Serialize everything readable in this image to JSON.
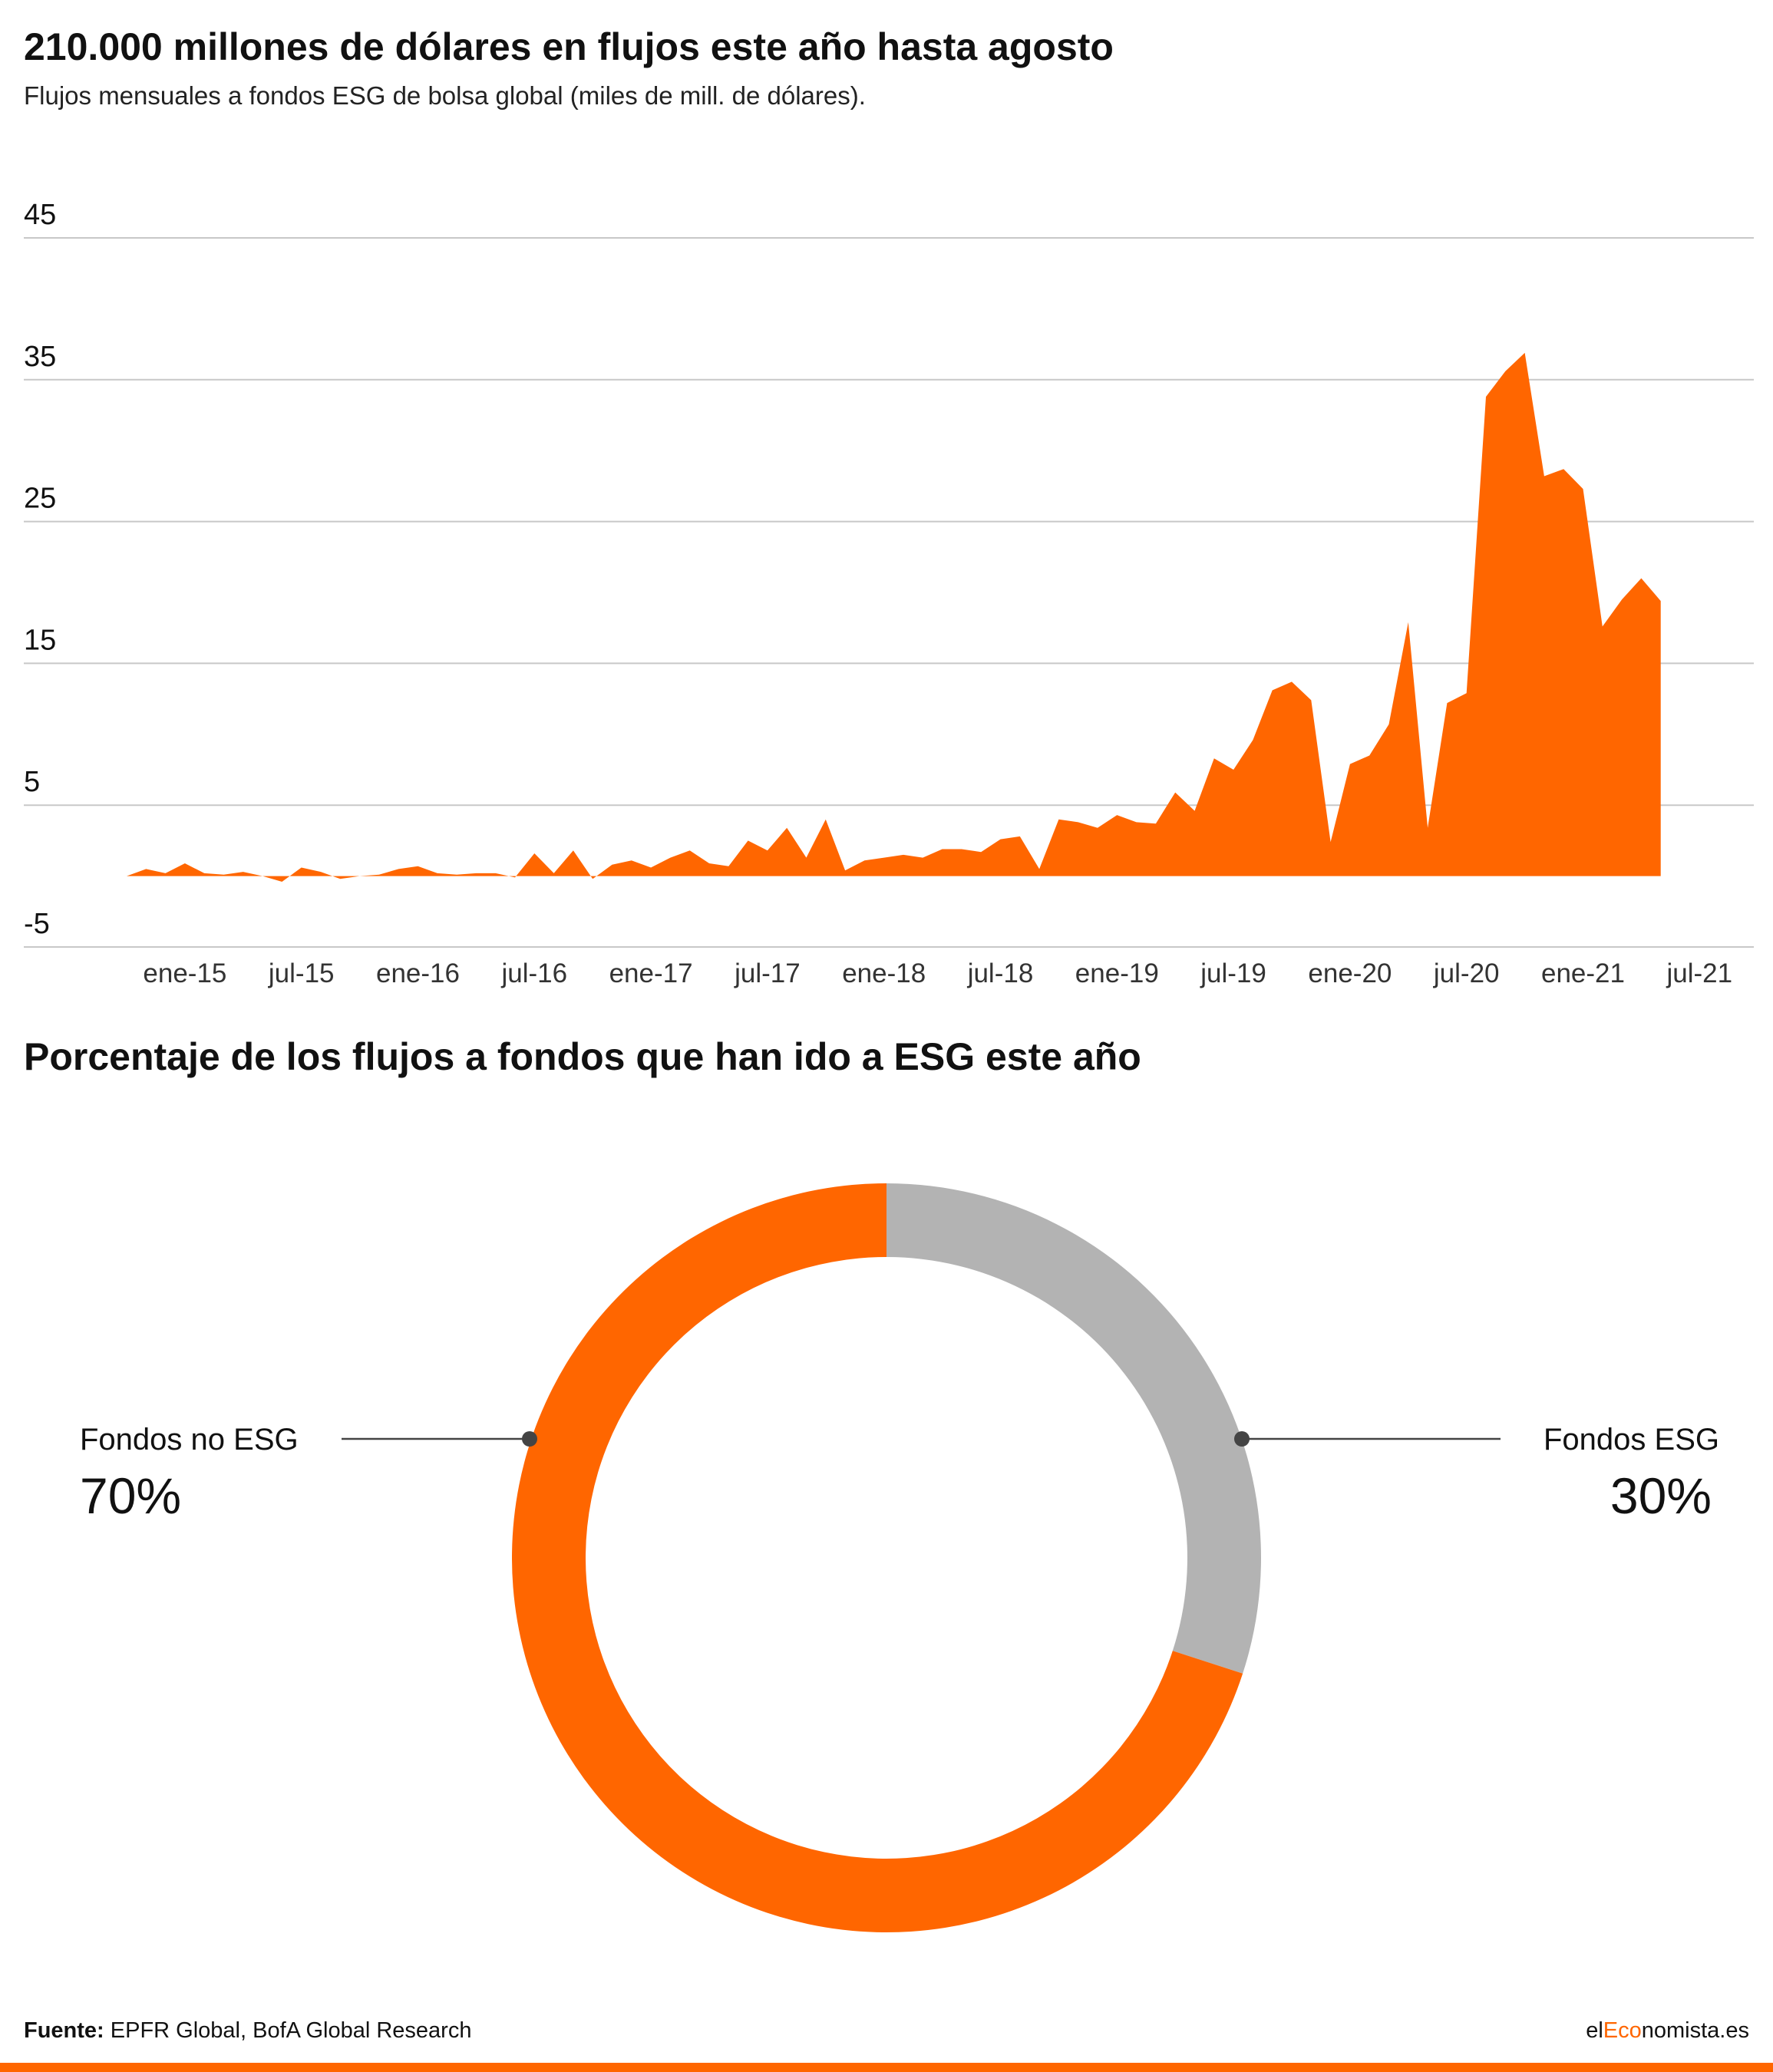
{
  "header": {
    "title": "210.000 millones de dólares en flujos este año hasta agosto",
    "subtitle": "Flujos mensuales a fondos ESG de bolsa global (miles de mill. de dólares)."
  },
  "section2": {
    "title": "Porcentaje de los flujos a fondos que han ido a ESG este año"
  },
  "footer": {
    "source_label": "Fuente:",
    "source_text": " EPFR Global, BofA Global Research",
    "brand_prefix": "el",
    "brand_accent": "Eco",
    "brand_suffix": "nomista.es"
  },
  "colors": {
    "accent": "#ff6600",
    "grey": "#b3b3b3",
    "grid": "#c8c8c8"
  },
  "chart_data": [
    {
      "type": "area",
      "title": "210.000 millones de dólares en flujos este año hasta agosto",
      "subtitle": "Flujos mensuales a fondos ESG de bolsa global (miles de mill. de dólares).",
      "ylim": [
        -5,
        45
      ],
      "yticks": [
        45,
        35,
        25,
        15,
        5,
        -5
      ],
      "xtick_labels": [
        "ene-15",
        "jul-15",
        "ene-16",
        "jul-16",
        "ene-17",
        "jul-17",
        "ene-18",
        "jul-18",
        "ene-19",
        "jul-19",
        "ene-20",
        "jul-20",
        "ene-21",
        "jul-21"
      ],
      "x_start": "2014-10",
      "color": "#ff6600",
      "grid": true,
      "values": [
        0,
        0.5,
        0.2,
        0.9,
        0.2,
        0.1,
        0.3,
        0,
        -0.4,
        0.6,
        0.3,
        -0.2,
        0,
        0.1,
        0.5,
        0.7,
        0.2,
        0.1,
        0.2,
        0.2,
        -0.1,
        1.6,
        0.2,
        1.8,
        -0.2,
        0.8,
        1.1,
        0.6,
        1.3,
        1.8,
        0.9,
        0.7,
        2.5,
        1.8,
        3.4,
        1.3,
        4.0,
        0.4,
        1.1,
        1.3,
        1.5,
        1.3,
        1.9,
        1.9,
        1.7,
        2.6,
        2.8,
        0.5,
        4.0,
        3.8,
        3.4,
        4.3,
        3.8,
        3.7,
        5.9,
        4.6,
        8.3,
        7.5,
        9.6,
        13.1,
        13.7,
        12.4,
        2.4,
        7.9,
        8.5,
        10.7,
        17.9,
        3.4,
        12.2,
        12.9,
        33.8,
        35.6,
        36.9,
        28.2,
        28.7,
        27.3,
        17.6,
        19.5,
        21.0,
        19.4
      ]
    },
    {
      "type": "pie",
      "title": "Porcentaje de los flujos a fondos que han ido a ESG este año",
      "labels": [
        "Fondos no ESG",
        "Fondos ESG"
      ],
      "values": [
        70,
        30
      ],
      "value_labels": [
        "70%",
        "30%"
      ],
      "colors": [
        "#ff6600",
        "#b3b3b3"
      ]
    }
  ]
}
